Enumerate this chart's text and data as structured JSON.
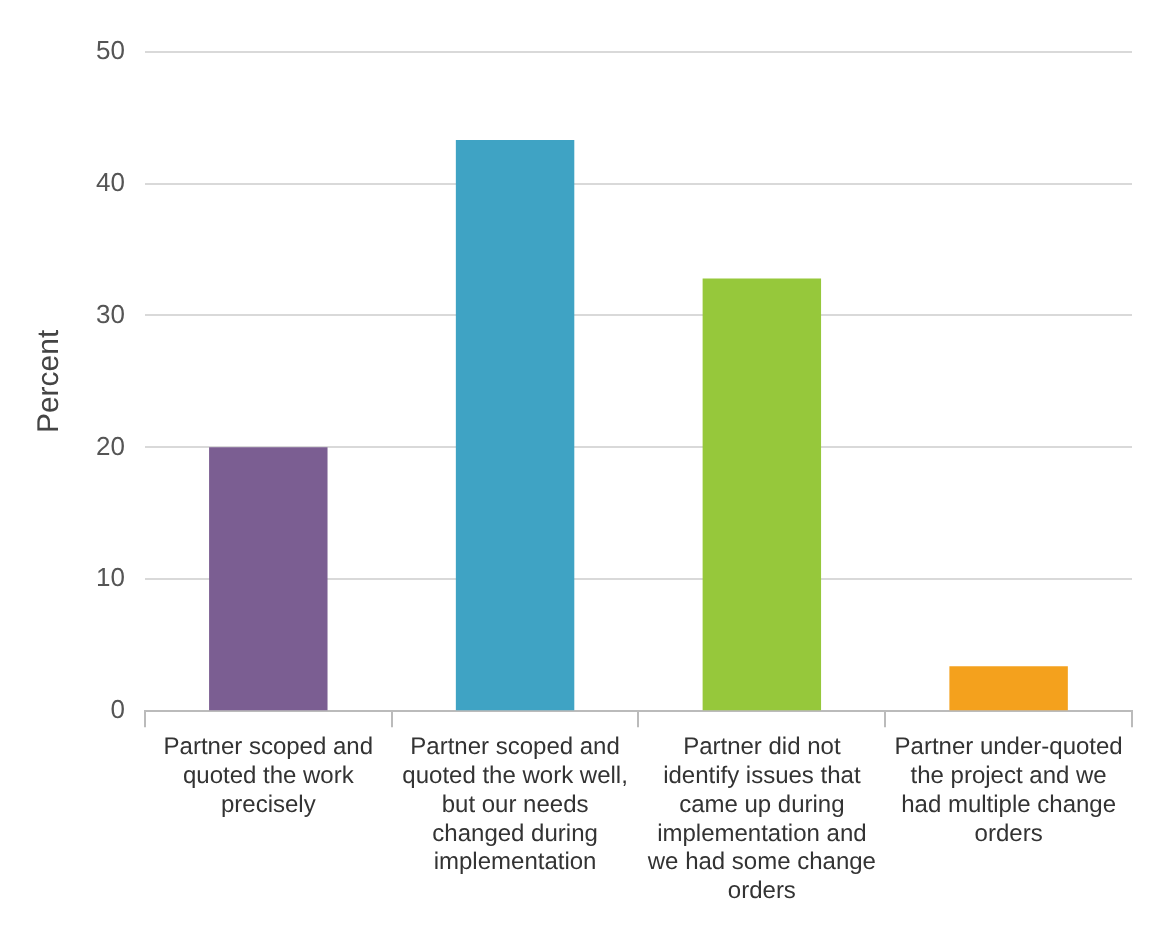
{
  "chart_data": {
    "type": "bar",
    "ylabel": "Percent",
    "categories": [
      "Partner scoped and quoted the work precisely",
      "Partner scoped and quoted the work well, but our needs changed during implementation",
      "Partner did not identify issues that came up during implementation and we had some change orders",
      "Partner under-quoted the project and we had multiple change orders"
    ],
    "values": [
      20,
      43.3,
      32.8,
      3.4
    ],
    "colors": [
      "#7b5e92",
      "#3fa3c4",
      "#96c83b",
      "#f4a11d"
    ],
    "ylim": [
      0,
      50
    ],
    "yticks": [
      0,
      10,
      20,
      30,
      40,
      50
    ],
    "grid": "y",
    "legend": false
  }
}
